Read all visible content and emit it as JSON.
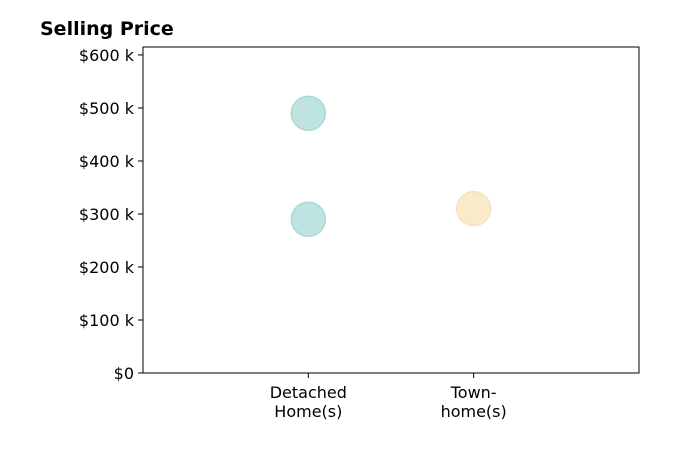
{
  "chart_data": {
    "type": "scatter",
    "title": "Selling Price",
    "xlabel": "",
    "ylabel": "",
    "categories": [
      [
        "Detached",
        "Home(s)"
      ],
      [
        "Town-",
        "home(s)"
      ]
    ],
    "xlim": [
      0,
      3
    ],
    "ylim": [
      0,
      615000
    ],
    "yticks": [
      0,
      100000,
      200000,
      300000,
      400000,
      500000,
      600000
    ],
    "ytick_labels": [
      "$0",
      "$100 k",
      "$200 k",
      "$300 k",
      "$400 k",
      "$500 k",
      "$600 k"
    ],
    "grid": false,
    "points": [
      {
        "category": 0,
        "value": 490000,
        "color": "#a8dad5"
      },
      {
        "category": 0,
        "value": 290000,
        "color": "#a8dad5"
      },
      {
        "category": 1,
        "value": 310000,
        "color": "#f7e3bb"
      }
    ]
  }
}
